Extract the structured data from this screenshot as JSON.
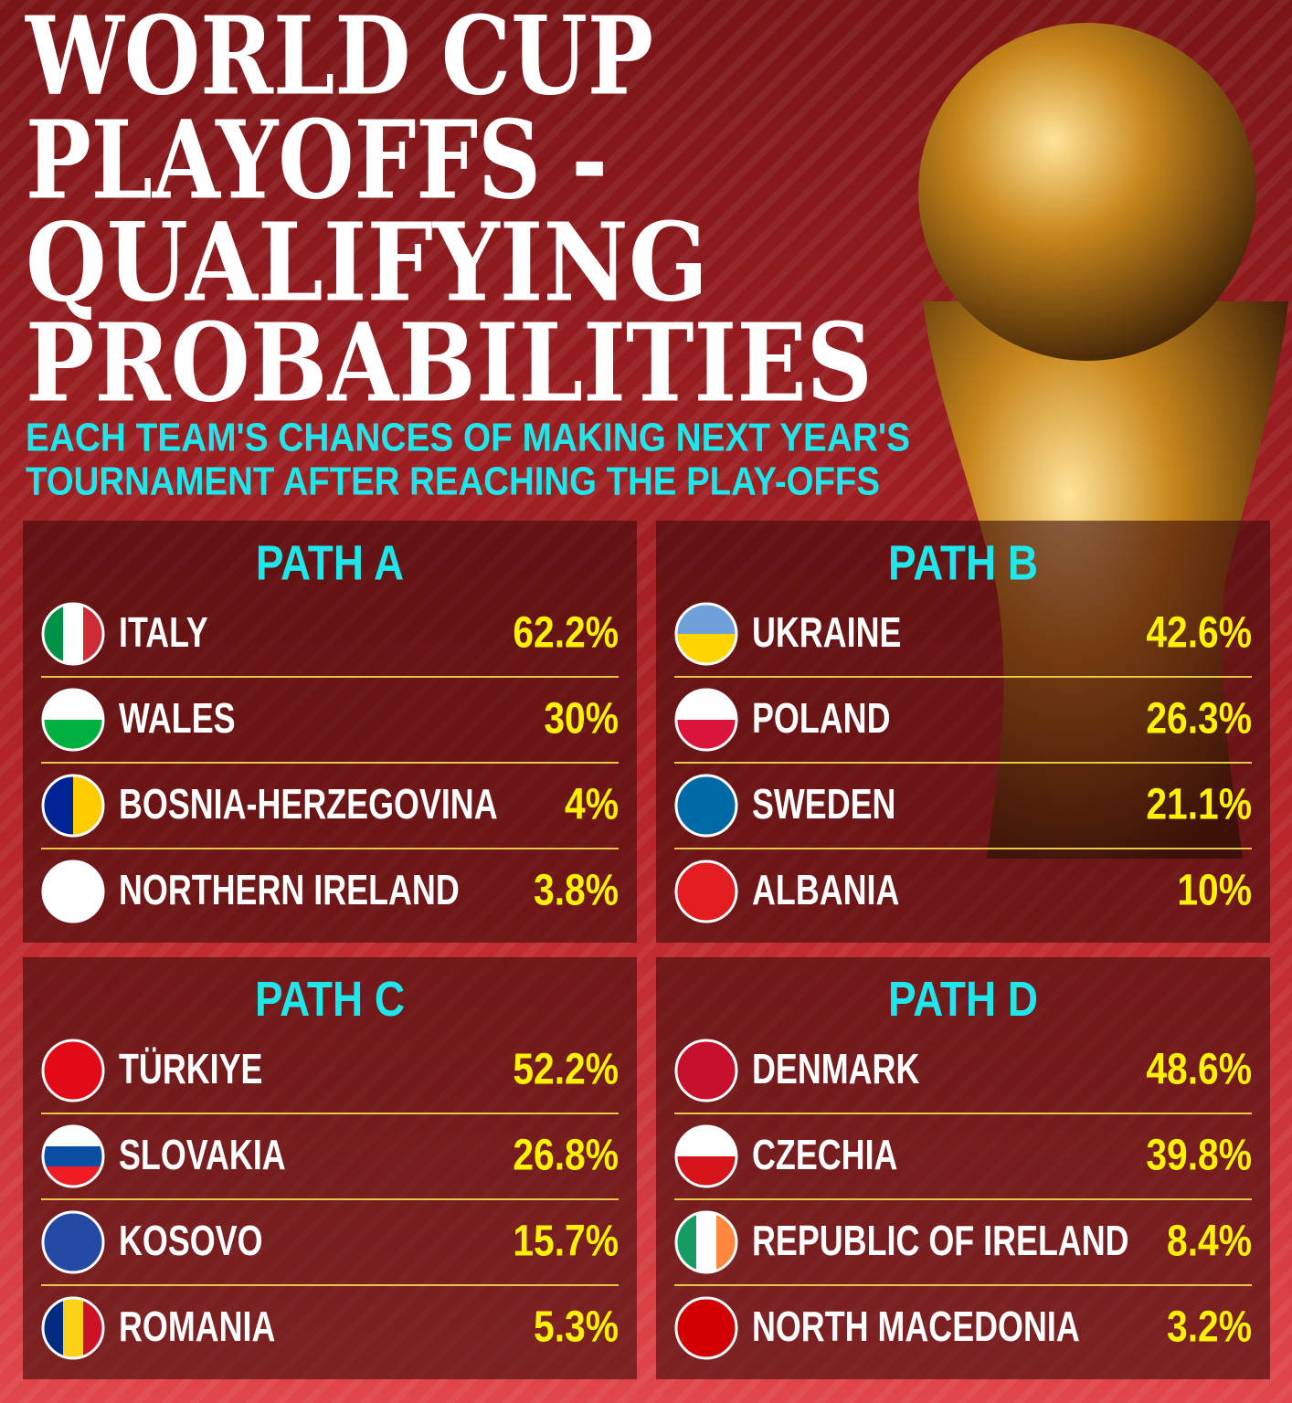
{
  "header": {
    "title_lines": [
      "WORLD CUP",
      "PLAYOFFS -",
      "QUALIFYING",
      "PROBABILITIES"
    ],
    "subtitle_lines": [
      "EACH TEAM'S CHANCES OF MAKING NEXT YEAR'S",
      "TOURNAMENT AFTER REACHING THE PLAY-OFFS"
    ]
  },
  "paths": [
    {
      "title": "PATH A",
      "teams": [
        {
          "name": "ITALY",
          "chance": "62.2%"
        },
        {
          "name": "WALES",
          "chance": "30%"
        },
        {
          "name": "BOSNIA-HERZEGOVINA",
          "chance": "4%"
        },
        {
          "name": "NORTHERN IRELAND",
          "chance": "3.8%"
        }
      ]
    },
    {
      "title": "PATH B",
      "teams": [
        {
          "name": "UKRAINE",
          "chance": "42.6%"
        },
        {
          "name": "POLAND",
          "chance": "26.3%"
        },
        {
          "name": "SWEDEN",
          "chance": "21.1%"
        },
        {
          "name": "ALBANIA",
          "chance": "10%"
        }
      ]
    },
    {
      "title": "PATH C",
      "teams": [
        {
          "name": "TÜRKIYE",
          "chance": "52.2%"
        },
        {
          "name": "SLOVAKIA",
          "chance": "26.8%"
        },
        {
          "name": "KOSOVO",
          "chance": "15.7%"
        },
        {
          "name": "ROMANIA",
          "chance": "5.3%"
        }
      ]
    },
    {
      "title": "PATH D",
      "teams": [
        {
          "name": "DENMARK",
          "chance": "48.6%"
        },
        {
          "name": "CZECHIA",
          "chance": "39.8%"
        },
        {
          "name": "REPUBLIC OF IRELAND",
          "chance": "8.4%"
        },
        {
          "name": "NORTH MACEDONIA",
          "chance": "3.2%"
        }
      ]
    }
  ]
}
